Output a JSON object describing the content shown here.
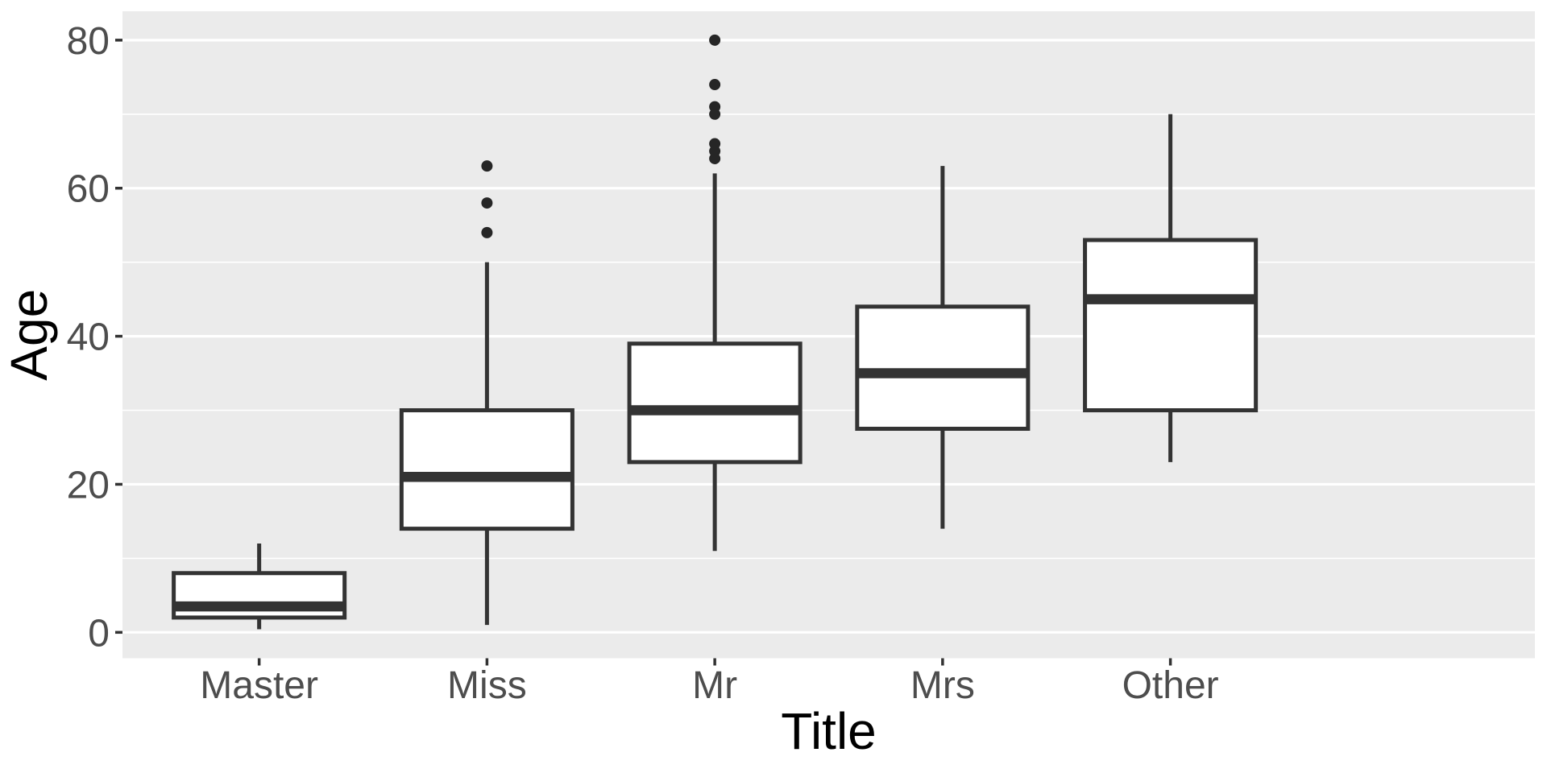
{
  "figure": {
    "x_axis_title": "Title",
    "y_axis_title": "Age"
  },
  "chart_data": {
    "type": "boxplot",
    "title": "",
    "xlabel": "Title",
    "ylabel": "Age",
    "categories": [
      "Master",
      "Miss",
      "Mr",
      "Mrs",
      "Other"
    ],
    "y_major_ticks": [
      0,
      20,
      40,
      60,
      80
    ],
    "y_minor_ticks": [
      10,
      30,
      50,
      70
    ],
    "ylim": [
      -3.5,
      83.9
    ],
    "grid": "white major and minor horizontal gridlines on grey panel",
    "legend_position": "none",
    "series": [
      {
        "category": "Master",
        "whisker_low": 0.42,
        "q1": 2,
        "median": 3.5,
        "q3": 8,
        "whisker_high": 12,
        "outliers": []
      },
      {
        "category": "Miss",
        "whisker_low": 1,
        "q1": 14,
        "median": 21,
        "q3": 30,
        "whisker_high": 50,
        "outliers": [
          54,
          58,
          63
        ]
      },
      {
        "category": "Mr",
        "whisker_low": 11,
        "q1": 23,
        "median": 30,
        "q3": 39,
        "whisker_high": 62,
        "outliers": [
          64,
          65,
          66,
          70,
          71,
          74,
          80
        ]
      },
      {
        "category": "Mrs",
        "whisker_low": 14,
        "q1": 27.5,
        "median": 35,
        "q3": 44,
        "whisker_high": 63,
        "outliers": []
      },
      {
        "category": "Other",
        "whisker_low": 23,
        "q1": 30,
        "median": 45,
        "q3": 53,
        "whisker_high": 70,
        "outliers": []
      }
    ],
    "colors": {
      "panel_background": "#EBEBEB",
      "gridline": "#FFFFFF",
      "box_fill": "#FFFFFF",
      "box_stroke": "#333333",
      "outlier_fill": "#262626",
      "tick_mark": "#333333",
      "tick_label": "#4D4D4D",
      "axis_title": "#000000",
      "figure_background": "#FFFFFF"
    }
  }
}
